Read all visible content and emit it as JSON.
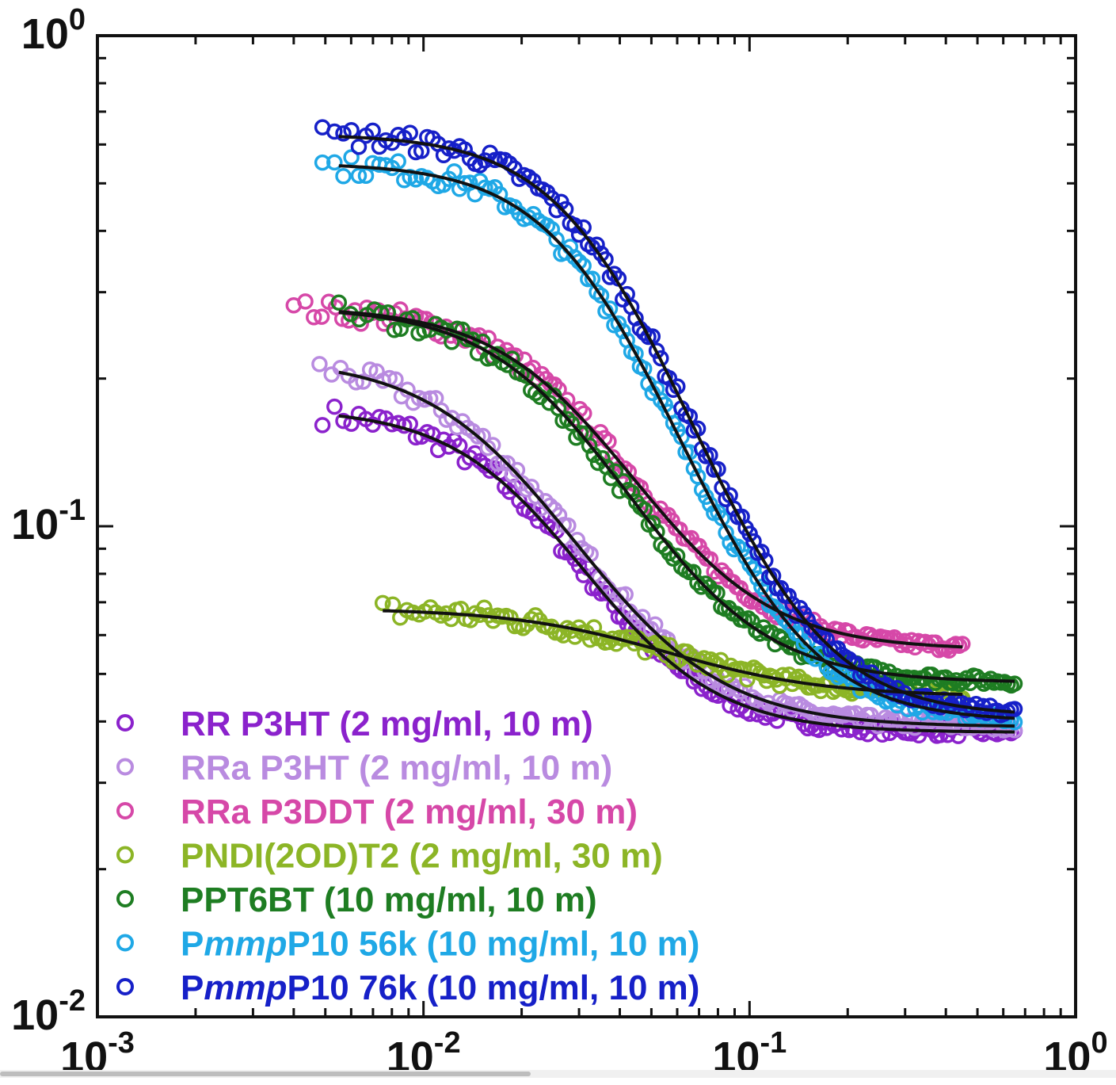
{
  "chart_data": {
    "type": "scatter",
    "title": "",
    "xlabel": "",
    "ylabel": "",
    "xscale": "log",
    "yscale": "log",
    "xlim": [
      0.001,
      1
    ],
    "ylim": [
      0.01,
      1
    ],
    "x_ticks": [
      {
        "value": 0.001,
        "base": "10",
        "exp": "-3"
      },
      {
        "value": 0.01,
        "base": "10",
        "exp": "-2"
      },
      {
        "value": 0.1,
        "base": "10",
        "exp": "-1"
      },
      {
        "value": 1,
        "base": "10",
        "exp": "0"
      }
    ],
    "y_ticks": [
      {
        "value": 0.01,
        "base": "10",
        "exp": "-2"
      },
      {
        "value": 0.1,
        "base": "10",
        "exp": "-1"
      },
      {
        "value": 1,
        "base": "10",
        "exp": "0"
      }
    ],
    "legend_position": "bottom-left",
    "fit_line_color": "#111111",
    "series": [
      {
        "name": "RR P3HT (2 mg/ml, 10 m)",
        "label_parts": [
          {
            "text": "RR P3HT (2 mg/ml, 10 m)",
            "italic": false
          }
        ],
        "color": "#8B22CC",
        "model": {
          "A": 0.174,
          "B": 0.038,
          "xc": 0.022,
          "p": 2.2,
          "x0": 0.0049,
          "x1": 0.65
        },
        "fit_range": [
          0.0055,
          0.65
        ]
      },
      {
        "name": "RRa P3HT (2 mg/ml, 10 m)",
        "label_parts": [
          {
            "text": "RRa P3HT (2 mg/ml, 10 m)",
            "italic": false
          }
        ],
        "color": "#B98BE0",
        "model": {
          "A": 0.22,
          "B": 0.039,
          "xc": 0.019,
          "p": 2.0,
          "x0": 0.0048,
          "x1": 0.65
        },
        "fit_range": [
          0.0055,
          0.65
        ]
      },
      {
        "name": "RRa P3DDT (2 mg/ml, 30 m)",
        "label_parts": [
          {
            "text": "RRa P3DDT (2 mg/ml, 30 m)",
            "italic": false
          }
        ],
        "color": "#D648A8",
        "model": {
          "A": 0.28,
          "B": 0.056,
          "xc": 0.03,
          "p": 2.1,
          "x0": 0.004,
          "x1": 0.45
        },
        "fit_range": [
          0.0055,
          0.45
        ]
      },
      {
        "name": "PNDI(2OD)T2 (2 mg/ml, 30 m)",
        "label_parts": [
          {
            "text": "PNDI(2OD)T2 (2 mg/ml, 30 m)",
            "italic": false
          }
        ],
        "color": "#8CB526",
        "model": {
          "A": 0.068,
          "B": 0.045,
          "xc": 0.05,
          "p": 1.8,
          "x0": 0.0075,
          "x1": 0.45
        },
        "fit_range": [
          0.0075,
          0.45
        ]
      },
      {
        "name": "PPT6BT (10 mg/ml, 10 m)",
        "label_parts": [
          {
            "text": "PPT6BT (10 mg/ml, 10 m)",
            "italic": false
          }
        ],
        "color": "#1E7D22",
        "model": {
          "A": 0.28,
          "B": 0.048,
          "xc": 0.028,
          "p": 2.1,
          "x0": 0.0055,
          "x1": 0.65
        },
        "fit_range": [
          0.0055,
          0.65
        ]
      },
      {
        "name": "PmmpP10 56k (10 mg/ml, 10 m)",
        "label_parts": [
          {
            "text": "P",
            "italic": false
          },
          {
            "text": "mmp",
            "italic": true
          },
          {
            "text": "P10 56k (10 mg/ml, 10 m)",
            "italic": false
          }
        ],
        "color": "#1FA8E6",
        "model": {
          "A": 0.55,
          "B": 0.04,
          "xc": 0.035,
          "p": 2.3,
          "x0": 0.0049,
          "x1": 0.65
        },
        "fit_range": [
          0.0055,
          0.65
        ]
      },
      {
        "name": "PmmpP10 76k (10 mg/ml, 10 m)",
        "label_parts": [
          {
            "text": "P",
            "italic": false
          },
          {
            "text": "mmp",
            "italic": true
          },
          {
            "text": "P10 76k (10 mg/ml, 10 m)",
            "italic": false
          }
        ],
        "color": "#1620C8",
        "model": {
          "A": 0.63,
          "B": 0.041,
          "xc": 0.037,
          "p": 2.3,
          "x0": 0.0049,
          "x1": 0.65
        },
        "fit_range": [
          0.0055,
          0.65
        ]
      }
    ]
  }
}
